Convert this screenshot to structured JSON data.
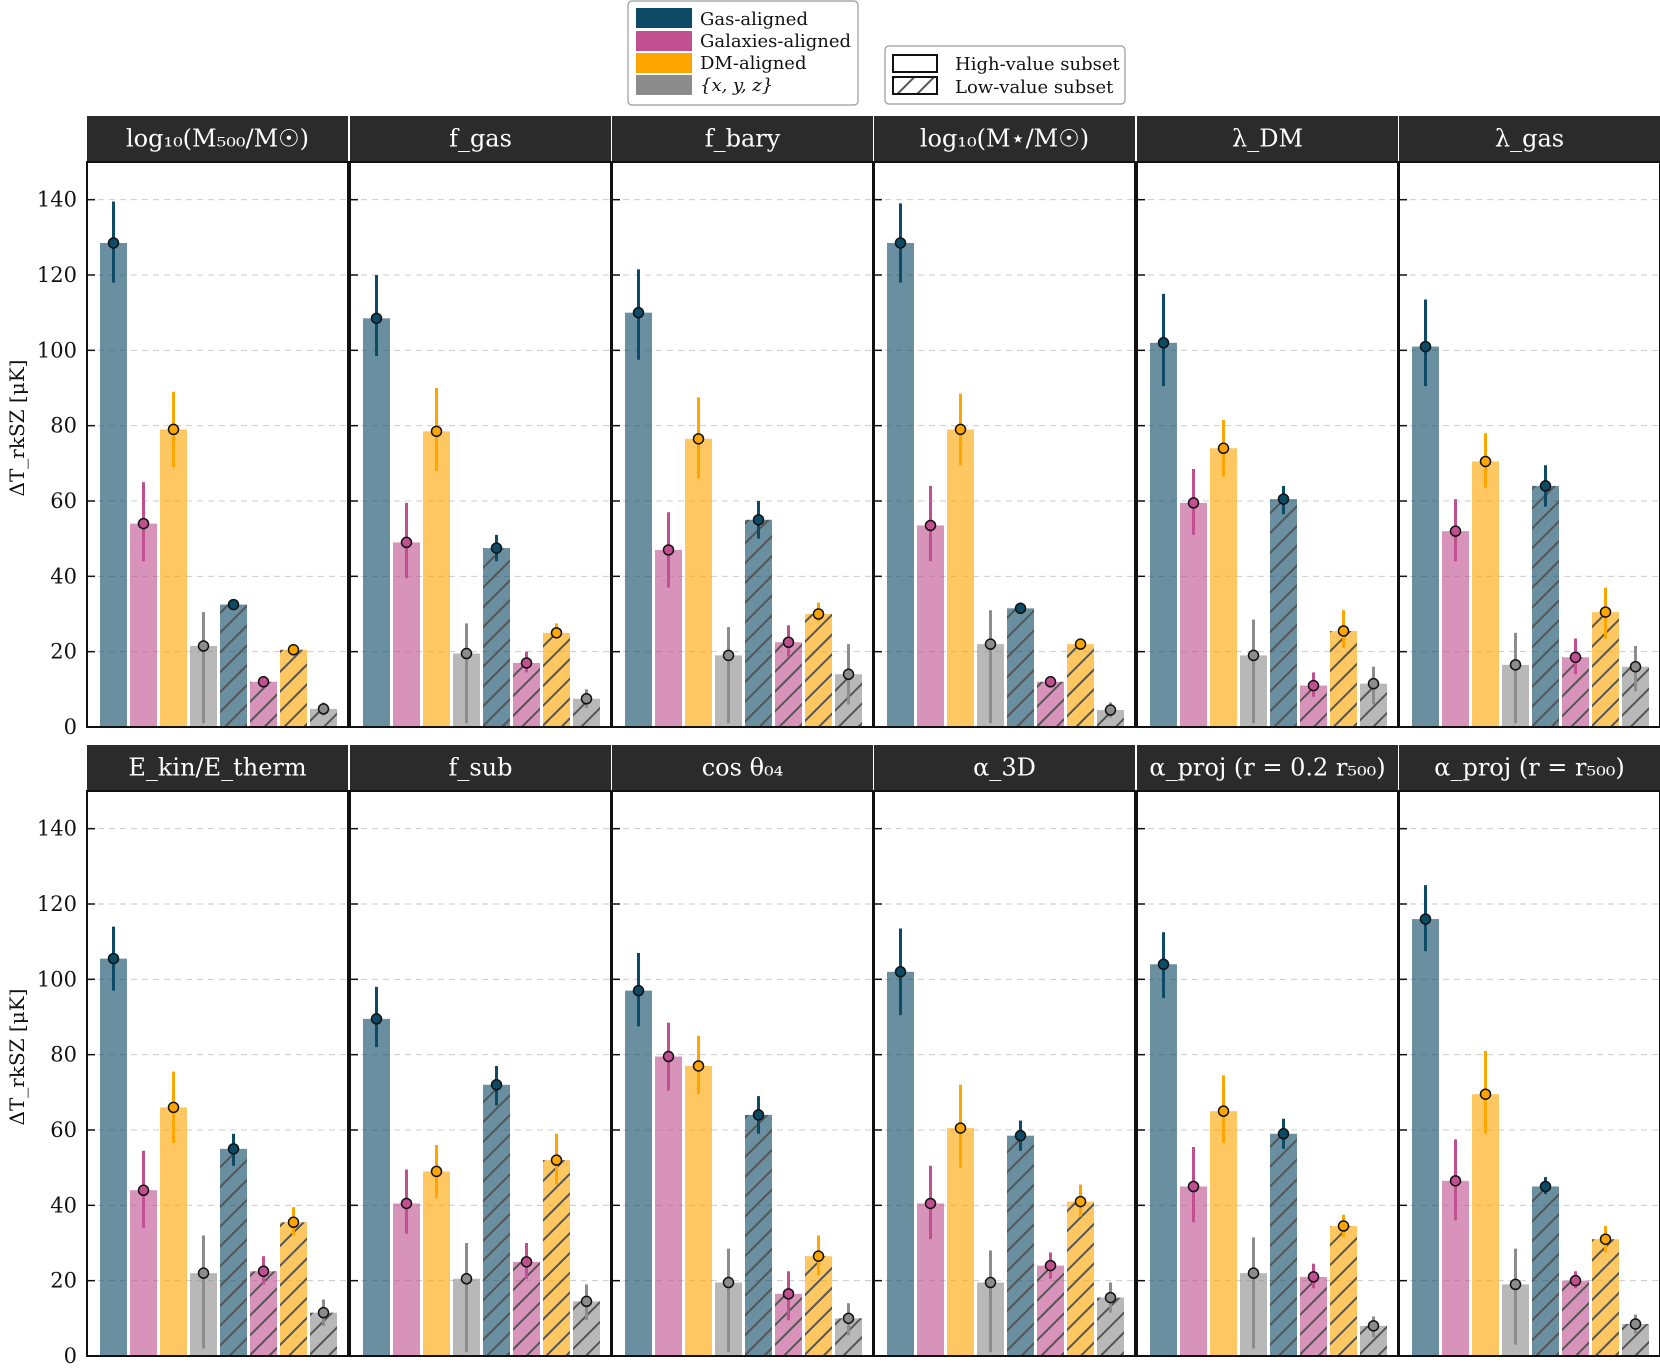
{
  "colors": {
    "gas": "#0d4a66",
    "galaxies": "#c0508f",
    "dm": "#ffa500",
    "xyz": "#8c8c8c",
    "header_bg": "#2b2b2b",
    "grid": "#cccccc"
  },
  "legend": {
    "gas": "Gas-aligned",
    "galaxies": "Galaxies-aligned",
    "dm": "DM-aligned",
    "xyz": "{x, y, z}",
    "high": "High-value subset",
    "low": "Low-value subset"
  },
  "chart_data": {
    "type": "bar",
    "ylabel": "ΔT_rkSZ [μK]",
    "ylim": [
      0,
      150
    ],
    "yticks": [
      "0",
      "20",
      "40",
      "60",
      "80",
      "100",
      "120",
      "140"
    ],
    "series_order": [
      "Gas-aligned",
      "Galaxies-aligned",
      "DM-aligned",
      "{x, y, z}"
    ],
    "subsets": [
      "High-value subset",
      "Low-value subset"
    ],
    "panels": [
      {
        "title": "log₁₀(M₅₀₀/M☉)",
        "high": [
          [
            128.5,
            118,
            139.5
          ],
          [
            54,
            44,
            65
          ],
          [
            79,
            69,
            89
          ],
          [
            21.5,
            1,
            30.5
          ]
        ],
        "low": [
          [
            32.5,
            31.5,
            33.5
          ],
          [
            12,
            10.5,
            13.5
          ],
          [
            20.5,
            19.5,
            21.5
          ],
          [
            4.8,
            3,
            6.5
          ]
        ]
      },
      {
        "title": "f_gas",
        "high": [
          [
            108.5,
            98.5,
            120
          ],
          [
            49,
            39.5,
            59.5
          ],
          [
            78.5,
            68,
            90
          ],
          [
            19.5,
            1,
            27.5
          ]
        ],
        "low": [
          [
            47.5,
            44,
            51
          ],
          [
            17,
            14.5,
            20
          ],
          [
            25,
            23.5,
            27.5
          ],
          [
            7.5,
            5,
            10
          ]
        ]
      },
      {
        "title": "f_bary",
        "high": [
          [
            110,
            97.5,
            121.5
          ],
          [
            47,
            37,
            57
          ],
          [
            76.5,
            66,
            87.5
          ],
          [
            19,
            1,
            26.5
          ]
        ],
        "low": [
          [
            55,
            50,
            60
          ],
          [
            22.5,
            18.5,
            27
          ],
          [
            30,
            28,
            33
          ],
          [
            14,
            6,
            22
          ]
        ]
      },
      {
        "title": "log₁₀(M⋆/M☉)",
        "high": [
          [
            128.5,
            118,
            139
          ],
          [
            53.5,
            44,
            64
          ],
          [
            79,
            69.5,
            88.5
          ],
          [
            22,
            1,
            31
          ]
        ],
        "low": [
          [
            31.5,
            30.5,
            33
          ],
          [
            12,
            10.5,
            13.5
          ],
          [
            22,
            20.5,
            23
          ],
          [
            4.5,
            2.5,
            6.5
          ]
        ]
      },
      {
        "title": "λ_DM",
        "high": [
          [
            102,
            90.5,
            115
          ],
          [
            59.5,
            51,
            68.5
          ],
          [
            74,
            66.5,
            81.5
          ],
          [
            19,
            1,
            28.5
          ]
        ],
        "low": [
          [
            60.5,
            56.5,
            64
          ],
          [
            11,
            8,
            14.5
          ],
          [
            25.5,
            21,
            31
          ],
          [
            11.5,
            6,
            16
          ]
        ]
      },
      {
        "title": "λ_gas",
        "high": [
          [
            101,
            90.5,
            113.5
          ],
          [
            52,
            44,
            60.5
          ],
          [
            70.5,
            63.5,
            78
          ],
          [
            16.5,
            1,
            25
          ]
        ],
        "low": [
          [
            64,
            58.5,
            69.5
          ],
          [
            18.5,
            14,
            23.5
          ],
          [
            30.5,
            23.5,
            37
          ],
          [
            16,
            9.5,
            21.5
          ]
        ]
      },
      {
        "title": "E_kin/E_therm",
        "high": [
          [
            105.5,
            97,
            114
          ],
          [
            44,
            34,
            54.5
          ],
          [
            66,
            56.5,
            75.5
          ],
          [
            22,
            2,
            32
          ]
        ],
        "low": [
          [
            55,
            50.5,
            59
          ],
          [
            22.5,
            19,
            26.5
          ],
          [
            35.5,
            32,
            39.5
          ],
          [
            11.5,
            8,
            15
          ]
        ]
      },
      {
        "title": "f_sub",
        "high": [
          [
            89.5,
            82,
            98
          ],
          [
            40.5,
            32.5,
            49.5
          ],
          [
            49,
            42,
            56
          ],
          [
            20.5,
            1,
            30
          ]
        ],
        "low": [
          [
            72,
            66.5,
            77
          ],
          [
            25,
            20.5,
            30
          ],
          [
            52,
            45.5,
            59
          ],
          [
            14.5,
            9.5,
            19
          ]
        ]
      },
      {
        "title": "cos θ₀₄",
        "high": [
          [
            97,
            87.5,
            107
          ],
          [
            79.5,
            70.5,
            88.5
          ],
          [
            77,
            69.5,
            85
          ],
          [
            19.5,
            1,
            28.5
          ]
        ],
        "low": [
          [
            64,
            59,
            69
          ],
          [
            16.5,
            9.5,
            22.5
          ],
          [
            26.5,
            21.5,
            32
          ],
          [
            10,
            5.5,
            14
          ]
        ]
      },
      {
        "title": "α_3D",
        "high": [
          [
            102,
            90.5,
            113.5
          ],
          [
            40.5,
            31,
            50.5
          ],
          [
            60.5,
            50,
            72
          ],
          [
            19.5,
            1,
            28
          ]
        ],
        "low": [
          [
            58.5,
            54.5,
            62.5
          ],
          [
            24,
            20.5,
            27.5
          ],
          [
            41,
            37,
            45.5
          ],
          [
            15.5,
            11.5,
            19.5
          ]
        ]
      },
      {
        "title": "α_proj (r = 0.2 r₅₀₀)",
        "high": [
          [
            104,
            95,
            112.5
          ],
          [
            45,
            35.5,
            55.5
          ],
          [
            65,
            56.5,
            74.5
          ],
          [
            22,
            2,
            31.5
          ]
        ],
        "low": [
          [
            59,
            55,
            63
          ],
          [
            21,
            18,
            24.5
          ],
          [
            34.5,
            31.5,
            37.5
          ],
          [
            8,
            5,
            10.5
          ]
        ]
      },
      {
        "title": "α_proj (r = r₅₀₀)",
        "high": [
          [
            116,
            107.5,
            125
          ],
          [
            46.5,
            36,
            57.5
          ],
          [
            69.5,
            59,
            81
          ],
          [
            19,
            3,
            28.5
          ]
        ],
        "low": [
          [
            45,
            43,
            47.5
          ],
          [
            20,
            18,
            22.5
          ],
          [
            31,
            27.5,
            34.5
          ],
          [
            8.5,
            6,
            11
          ]
        ]
      }
    ]
  }
}
